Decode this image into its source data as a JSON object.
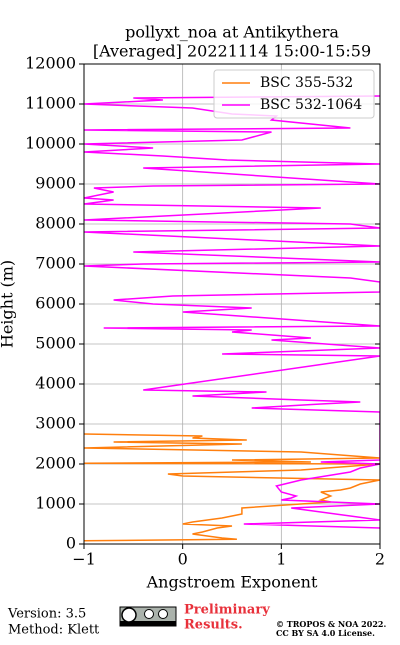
{
  "chart_data": {
    "type": "line",
    "title": [
      "pollyxt_noa at Antikythera",
      "[Averaged] 20221114 15:00-15:59"
    ],
    "xlabel": "Angstroem Exponent",
    "ylabel": "Height (m)",
    "xlim": [
      -1,
      2
    ],
    "xticks": [
      {
        "value": -1,
        "label": "−1"
      },
      0,
      1,
      2
    ],
    "ylim": [
      0,
      12000
    ],
    "yticks": [
      0,
      1000,
      2000,
      3000,
      4000,
      5000,
      6000,
      7000,
      8000,
      9000,
      10000,
      11000,
      12000
    ],
    "grid": true,
    "legend": "upper right",
    "series": [
      {
        "name": "BSC 355-532",
        "color": "#ff7f0e",
        "height": [
          80,
          120,
          150,
          250,
          300,
          400,
          450,
          500,
          550,
          650,
          750,
          900,
          1050,
          1100,
          1200,
          1300,
          1350,
          1400,
          1500,
          1550,
          1600,
          1700,
          1750,
          1850,
          2000,
          2020,
          2050,
          2100,
          2150,
          2300,
          2400,
          2500,
          2550,
          2600,
          2650,
          2700,
          2750
        ],
        "values": [
          -1.0,
          0.55,
          0.4,
          0.1,
          0.2,
          0.35,
          0.5,
          0.0,
          0.1,
          0.4,
          0.6,
          0.6,
          1.5,
          1.4,
          1.5,
          1.4,
          1.6,
          1.7,
          1.8,
          1.9,
          2.0,
          0.0,
          -0.15,
          1.2,
          2.0,
          -1.0,
          1.3,
          0.5,
          2.0,
          1.2,
          -1.0,
          0.6,
          -0.7,
          0.65,
          0.1,
          0.2,
          -1.0
        ]
      },
      {
        "name": "BSC 532-1064",
        "color": "#ff00ff",
        "height": [
          400,
          500,
          600,
          900,
          1000,
          1100,
          1150,
          1200,
          1300,
          1450,
          1600,
          1800,
          1900,
          2000,
          2050,
          2100,
          3300,
          3400,
          3500,
          3550,
          3600,
          3700,
          3800,
          3850,
          4700,
          4750,
          4900,
          5100,
          5150,
          5300,
          5350,
          5400,
          5450,
          5800,
          5900,
          6000,
          6100,
          6200,
          6300,
          6550,
          6650,
          6950,
          7000,
          7050,
          7300,
          7450,
          7800,
          7900,
          8000,
          8100,
          8400,
          8500,
          8600,
          8650,
          8800,
          8900,
          8950,
          9000,
          9400,
          9500,
          9600,
          9700,
          9800,
          9900,
          10000,
          10100,
          10300,
          10350,
          10400,
          10600,
          10700,
          10750,
          10900,
          11000,
          11050,
          11100,
          11150,
          11200
        ],
        "values": [
          2.0,
          0.62,
          2.0,
          1.1,
          2.0,
          1.0,
          1.1,
          1.15,
          1.0,
          0.95,
          1.2,
          1.7,
          1.8,
          2.0,
          1.4,
          2.0,
          2.0,
          0.7,
          1.4,
          1.8,
          1.2,
          0.1,
          0.85,
          -0.4,
          2.0,
          0.4,
          2.0,
          0.9,
          1.3,
          0.5,
          0.7,
          -0.8,
          2.0,
          0.0,
          0.7,
          -0.3,
          -0.7,
          -0.1,
          2.0,
          2.0,
          1.7,
          -1.0,
          -0.4,
          2.0,
          -0.5,
          2.0,
          -1.0,
          2.0,
          1.7,
          -1.0,
          1.4,
          -1.0,
          -0.7,
          -1.0,
          -0.7,
          -0.9,
          -0.3,
          2.0,
          -0.4,
          2.0,
          0.45,
          -0.2,
          -1.0,
          -0.3,
          -1.0,
          0.6,
          0.9,
          -1.0,
          1.7,
          0.9,
          0.95,
          0.5,
          0.1,
          -1.0,
          -0.6,
          -0.2,
          -0.5,
          2.0
        ]
      }
    ]
  },
  "footer": {
    "version": "Version: 3.5",
    "method": "Method: Klett",
    "notice": [
      "Preliminary",
      "Results."
    ],
    "copyright": "© TROPOS & NOA 2022.",
    "license": "CC BY SA 4.0 License."
  }
}
